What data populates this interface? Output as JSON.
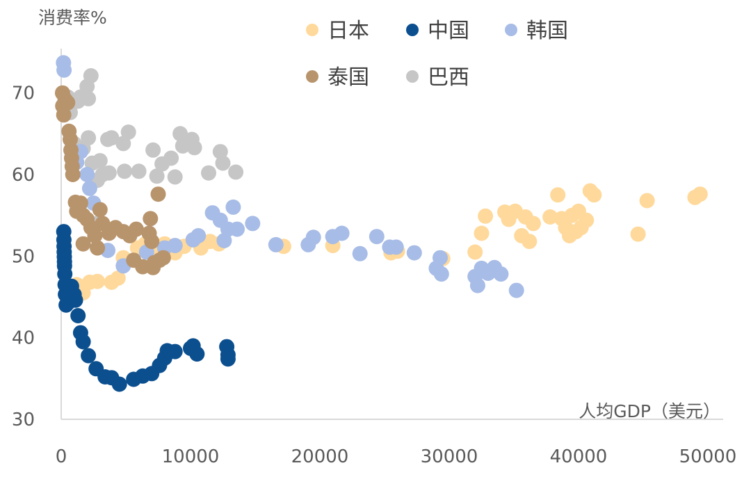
{
  "chart_data": {
    "type": "scatter",
    "title": "",
    "xlabel": "人均GDP（美元）",
    "ylabel": "消费率%",
    "xlim": [
      0,
      50000
    ],
    "ylim": [
      30,
      75
    ],
    "x_ticks": [
      0,
      10000,
      20000,
      30000,
      40000,
      50000
    ],
    "y_ticks": [
      30,
      40,
      50,
      60,
      70
    ],
    "grid": false,
    "legend_position": "top",
    "series": [
      {
        "name": "日本",
        "color": "#FFD99B",
        "points": [
          [
            1200,
            46.5
          ],
          [
            1700,
            45.5
          ],
          [
            2200,
            46.8
          ],
          [
            2800,
            46.9
          ],
          [
            3900,
            46.8
          ],
          [
            4400,
            47.3
          ],
          [
            4800,
            49.8
          ],
          [
            5900,
            51.0
          ],
          [
            6500,
            51.5
          ],
          [
            7200,
            50.5
          ],
          [
            8000,
            51.5
          ],
          [
            8800,
            50.4
          ],
          [
            9500,
            51.2
          ],
          [
            10200,
            52.0
          ],
          [
            10800,
            51.0
          ],
          [
            11500,
            51.8
          ],
          [
            12200,
            51.5
          ],
          [
            17200,
            51.2
          ],
          [
            21000,
            51.3
          ],
          [
            25500,
            50.4
          ],
          [
            26000,
            50.6
          ],
          [
            29500,
            49.7
          ],
          [
            32000,
            50.5
          ],
          [
            32500,
            52.8
          ],
          [
            32800,
            54.9
          ],
          [
            34300,
            55.4
          ],
          [
            34600,
            54.5
          ],
          [
            35100,
            55.5
          ],
          [
            35600,
            52.5
          ],
          [
            35900,
            54.8
          ],
          [
            36200,
            51.8
          ],
          [
            36500,
            54.0
          ],
          [
            37800,
            54.8
          ],
          [
            38400,
            57.5
          ],
          [
            38700,
            54.6
          ],
          [
            39000,
            53.5
          ],
          [
            39300,
            52.5
          ],
          [
            39500,
            55.0
          ],
          [
            39800,
            53.0
          ],
          [
            40000,
            55.5
          ],
          [
            40200,
            53.5
          ],
          [
            40600,
            54.4
          ],
          [
            40900,
            58.0
          ],
          [
            41200,
            57.5
          ],
          [
            44600,
            52.7
          ],
          [
            45300,
            56.8
          ],
          [
            49000,
            57.2
          ],
          [
            49400,
            57.6
          ]
        ]
      },
      {
        "name": "中国",
        "color": "#0B4F8F",
        "points": [
          [
            200,
            53.0
          ],
          [
            210,
            52.0
          ],
          [
            220,
            51.2
          ],
          [
            230,
            50.5
          ],
          [
            240,
            49.9
          ],
          [
            250,
            49.3
          ],
          [
            260,
            48.8
          ],
          [
            280,
            47.8
          ],
          [
            300,
            46.5
          ],
          [
            330,
            45.3
          ],
          [
            380,
            44.0
          ],
          [
            550,
            44.3
          ],
          [
            800,
            46.3
          ],
          [
            1000,
            45.3
          ],
          [
            1100,
            44.6
          ],
          [
            1300,
            42.7
          ],
          [
            1500,
            40.6
          ],
          [
            1700,
            39.5
          ],
          [
            2100,
            37.8
          ],
          [
            2700,
            36.2
          ],
          [
            3400,
            35.2
          ],
          [
            3900,
            35.1
          ],
          [
            4500,
            34.3
          ],
          [
            5600,
            34.9
          ],
          [
            6300,
            35.3
          ],
          [
            7000,
            35.6
          ],
          [
            7600,
            36.6
          ],
          [
            8000,
            37.5
          ],
          [
            8200,
            38.4
          ],
          [
            8800,
            38.3
          ],
          [
            10000,
            38.7
          ],
          [
            10200,
            39.0
          ],
          [
            10500,
            38.0
          ],
          [
            12800,
            38.9
          ],
          [
            12900,
            37.9
          ],
          [
            12900,
            37.4
          ]
        ]
      },
      {
        "name": "韩国",
        "color": "#A7BCE6",
        "points": [
          [
            180,
            73.7
          ],
          [
            220,
            72.8
          ],
          [
            1200,
            61.5
          ],
          [
            1500,
            62.8
          ],
          [
            2000,
            60.0
          ],
          [
            2200,
            58.3
          ],
          [
            2500,
            56.5
          ],
          [
            3600,
            50.7
          ],
          [
            4800,
            48.8
          ],
          [
            6600,
            50.5
          ],
          [
            8000,
            51.0
          ],
          [
            8800,
            51.3
          ],
          [
            10200,
            52.0
          ],
          [
            10600,
            52.5
          ],
          [
            11700,
            55.3
          ],
          [
            12300,
            54.4
          ],
          [
            12600,
            51.9
          ],
          [
            12900,
            53.3
          ],
          [
            13300,
            56.0
          ],
          [
            13600,
            53.3
          ],
          [
            14800,
            54.0
          ],
          [
            16600,
            51.4
          ],
          [
            19100,
            51.4
          ],
          [
            19500,
            52.3
          ],
          [
            21000,
            52.4
          ],
          [
            21700,
            52.8
          ],
          [
            23100,
            50.3
          ],
          [
            24400,
            52.4
          ],
          [
            25400,
            51.1
          ],
          [
            25900,
            51.1
          ],
          [
            27300,
            50.4
          ],
          [
            29000,
            48.5
          ],
          [
            29300,
            49.8
          ],
          [
            29400,
            47.8
          ],
          [
            32000,
            47.5
          ],
          [
            32200,
            46.4
          ],
          [
            32500,
            48.5
          ],
          [
            33000,
            47.9
          ],
          [
            33500,
            48.6
          ],
          [
            34000,
            47.8
          ],
          [
            35200,
            45.8
          ]
        ]
      },
      {
        "name": "泰国",
        "color": "#B8946C",
        "points": [
          [
            100,
            70.0
          ],
          [
            120,
            68.4
          ],
          [
            200,
            67.3
          ],
          [
            300,
            69.2
          ],
          [
            500,
            68.8
          ],
          [
            600,
            65.3
          ],
          [
            700,
            64.3
          ],
          [
            750,
            63.0
          ],
          [
            800,
            62.0
          ],
          [
            850,
            61.0
          ],
          [
            900,
            60.0
          ],
          [
            1100,
            56.6
          ],
          [
            1200,
            55.5
          ],
          [
            1500,
            56.5
          ],
          [
            1700,
            55.0
          ],
          [
            1700,
            51.5
          ],
          [
            2000,
            54.5
          ],
          [
            2300,
            53.5
          ],
          [
            2600,
            52.5
          ],
          [
            2800,
            51.0
          ],
          [
            3000,
            55.7
          ],
          [
            3200,
            54.0
          ],
          [
            3700,
            52.8
          ],
          [
            4200,
            53.5
          ],
          [
            4800,
            53.0
          ],
          [
            5300,
            52.5
          ],
          [
            5600,
            49.5
          ],
          [
            5800,
            53.3
          ],
          [
            6300,
            48.7
          ],
          [
            6800,
            52.8
          ],
          [
            6900,
            54.6
          ],
          [
            7000,
            51.8
          ],
          [
            7100,
            48.6
          ],
          [
            7200,
            49.2
          ],
          [
            7500,
            57.6
          ],
          [
            7600,
            49.5
          ],
          [
            7900,
            49.8
          ]
        ]
      },
      {
        "name": "巴西",
        "color": "#C6C6C6",
        "points": [
          [
            300,
            68.0
          ],
          [
            500,
            69.5
          ],
          [
            700,
            67.6
          ],
          [
            900,
            68.8
          ],
          [
            1300,
            69.0
          ],
          [
            1500,
            69.5
          ],
          [
            2000,
            70.8
          ],
          [
            2100,
            69.3
          ],
          [
            2300,
            72.1
          ],
          [
            1000,
            63.8
          ],
          [
            1700,
            63.2
          ],
          [
            2100,
            64.5
          ],
          [
            2400,
            61.4
          ],
          [
            3000,
            61.7
          ],
          [
            3200,
            60.0
          ],
          [
            2800,
            59.3
          ],
          [
            3600,
            64.3
          ],
          [
            3900,
            64.5
          ],
          [
            3700,
            60.2
          ],
          [
            4800,
            63.8
          ],
          [
            4900,
            60.4
          ],
          [
            5200,
            65.2
          ],
          [
            6000,
            60.4
          ],
          [
            7100,
            63.0
          ],
          [
            7400,
            59.8
          ],
          [
            7800,
            61.3
          ],
          [
            8500,
            62.0
          ],
          [
            8800,
            59.7
          ],
          [
            9200,
            65.0
          ],
          [
            9400,
            63.5
          ],
          [
            9700,
            64.0
          ],
          [
            10100,
            64.3
          ],
          [
            10300,
            63.3
          ],
          [
            11400,
            60.2
          ],
          [
            12300,
            62.8
          ],
          [
            12500,
            61.4
          ],
          [
            13500,
            60.3
          ],
          [
            2800,
            54.0
          ]
        ]
      }
    ]
  }
}
